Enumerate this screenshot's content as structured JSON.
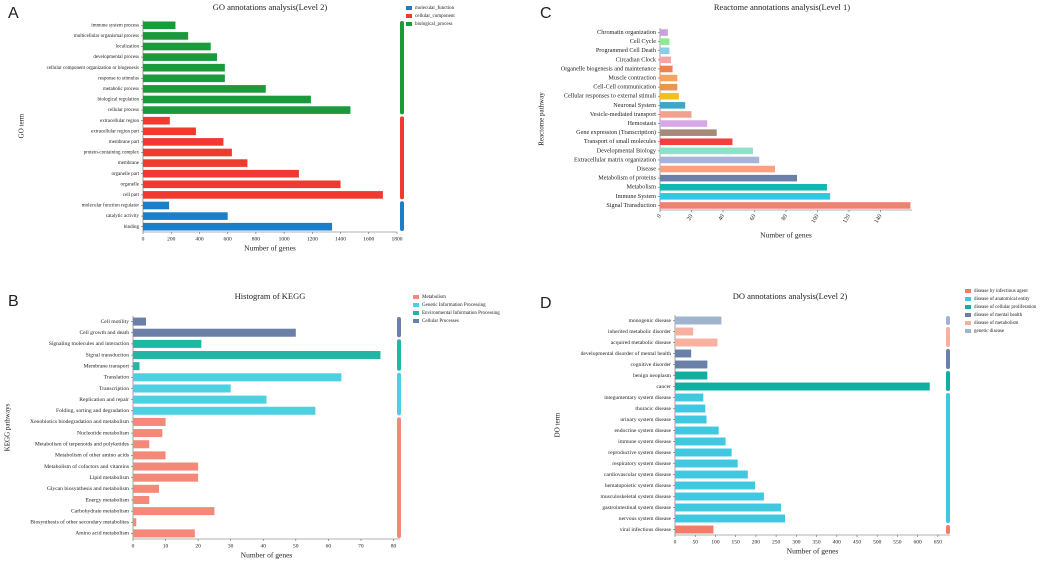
{
  "chart_data": [
    {
      "type": "bar",
      "label": "A",
      "title": "GO annotations analysis(Level 2)",
      "xlabel": "Number of genes",
      "ylabel": "GO term",
      "categories": [
        "immune system process",
        "multicellular organismal process",
        "localization",
        "developmental process",
        "cellular component organization or biogenesis",
        "response to stimulus",
        "metabolic process",
        "biological regulation",
        "cellular process",
        "extracellular region",
        "extracellular region part",
        "membrane part",
        "protein-containing complex",
        "membrane",
        "organelle part",
        "organelle",
        "cell part",
        "molecular function regulator",
        "catalytic activity",
        "binding"
      ],
      "values": [
        230,
        320,
        480,
        525,
        580,
        580,
        870,
        1190,
        1470,
        190,
        375,
        570,
        630,
        740,
        1105,
        1400,
        1700,
        185,
        600,
        1340
      ],
      "colors": [
        "#1a9a3a",
        "#1a9a3a",
        "#1a9a3a",
        "#1a9a3a",
        "#1a9a3a",
        "#1a9a3a",
        "#1a9a3a",
        "#1a9a3a",
        "#1a9a3a",
        "#f03a30",
        "#f03a30",
        "#f03a30",
        "#f03a30",
        "#f03a30",
        "#f03a30",
        "#f03a30",
        "#f03a30",
        "#1a7fc8",
        "#1a7fc8",
        "#1a7fc8"
      ],
      "legend": [
        {
          "name": "molecular_function",
          "color": "#1a7fc8"
        },
        {
          "name": "cellular_component",
          "color": "#f03a30"
        },
        {
          "name": "biological_process",
          "color": "#1a9a3a"
        }
      ],
      "xlim": [
        0,
        1800
      ],
      "xticks": [
        0,
        200,
        400,
        600,
        800,
        1000,
        1200,
        1400,
        1600,
        1800
      ]
    },
    {
      "type": "bar",
      "label": "B",
      "title": "Histogram of KEGG",
      "xlabel": "Number of genes",
      "ylabel": "KEGG pathways",
      "categories": [
        "Cell motility",
        "Cell growth and death",
        "Signaling molecules and interaction",
        "Signal transduction",
        "Membrane transport",
        "Translation",
        "Transcription",
        "Replication and repair",
        "Folding, sorting and degradation",
        "Xenobiotics biodegradation and metabolism",
        "Nucleotide metabolism",
        "Metabolism of terpenoids and polyketides",
        "Metabolism of other amino acids",
        "Metabolism of cofactors and vitamins",
        "Lipid metabolism",
        "Glycan biosynthesis and metabolism",
        "Energy metabolism",
        "Carbohydrate metabolism",
        "Biosynthesis of other secondary metabolites",
        "Amino acid metabolism"
      ],
      "values": [
        4,
        50,
        21,
        76,
        2,
        64,
        30,
        41,
        56,
        10,
        9,
        5,
        10,
        20,
        20,
        8,
        5,
        25,
        1,
        19
      ],
      "colors": [
        "#6b7fa8",
        "#6b7fa8",
        "#20b8a4",
        "#20b8a4",
        "#20b8a4",
        "#4dd0e1",
        "#4dd0e1",
        "#4dd0e1",
        "#4dd0e1",
        "#f4897a",
        "#f4897a",
        "#f4897a",
        "#f4897a",
        "#f4897a",
        "#f4897a",
        "#f4897a",
        "#f4897a",
        "#f4897a",
        "#f4897a",
        "#f4897a"
      ],
      "legend": [
        {
          "name": "Metabolism",
          "color": "#f4897a"
        },
        {
          "name": "Genetic Information Processing",
          "color": "#4dd0e1"
        },
        {
          "name": "Environmental Information Processing",
          "color": "#20b8a4"
        },
        {
          "name": "Cellular Processes",
          "color": "#6b7fa8"
        }
      ],
      "xlim": [
        0,
        82
      ],
      "xticks": [
        0,
        10,
        20,
        30,
        40,
        50,
        60,
        70,
        80
      ]
    },
    {
      "type": "bar",
      "label": "C",
      "title": "Reactome annotations analysis(Level 1)",
      "xlabel": "Number of genes",
      "ylabel": "Reactome pathway",
      "categories": [
        "Chromatin organization",
        "Cell Cycle",
        "Programmed Cell Death",
        "Circadian Clock",
        "Organelle biogenesis and maintenance",
        "Muscle contraction",
        "Cell-Cell communication",
        "Cellular responses to external stimuli",
        "Neuronal System",
        "Vesicle-mediated transport",
        "Hemostasis",
        "Gene expression (Transcription)",
        "Transport of small molecules",
        "Developmental Biology",
        "Extracellular matrix organization",
        "Disease",
        "Metabolism of proteins",
        "Metabolism",
        "Immune System",
        "Signal Transduction"
      ],
      "values": [
        5,
        6,
        6,
        7,
        8,
        11,
        11,
        12,
        16,
        20,
        30,
        36,
        46,
        59,
        63,
        73,
        87,
        106,
        108,
        159
      ],
      "colors": [
        "#c9a0dc",
        "#90e890",
        "#87ceeb",
        "#f4a6a6",
        "#f08050",
        "#f4a460",
        "#e8964f",
        "#f0c020",
        "#3aa8c8",
        "#f4a090",
        "#d6a8e8",
        "#a88878",
        "#f04040",
        "#90e0c8",
        "#a8b4d8",
        "#f8a080",
        "#6a80a8",
        "#10b8b0",
        "#30c8e0",
        "#f08070"
      ],
      "xlim": [
        0,
        160
      ],
      "xticks": [
        0,
        20,
        40,
        60,
        80,
        100,
        120,
        140
      ]
    },
    {
      "type": "bar",
      "label": "D",
      "title": "DO annotations analysis(Level 2)",
      "xlabel": "Number of genes",
      "ylabel": "DO term",
      "categories": [
        "monogenic disease",
        "inherited metabolic disorder",
        "acquired metabolic disease",
        "developmental disorder of mental health",
        "cognitive disorder",
        "benign neoplasm",
        "cancer",
        "integumentary system disease",
        "thoracic disease",
        "urinary system disease",
        "endocrine system disease",
        "immune system disease",
        "reproductive system disease",
        "respiratory system disease",
        "cardiovascular system disease",
        "hematopoietic system disease",
        "musculoskeletal system disease",
        "gastrointestinal system disease",
        "nervous system disease",
        "viral infectious disease"
      ],
      "values": [
        115,
        45,
        105,
        40,
        80,
        80,
        630,
        70,
        75,
        78,
        108,
        125,
        140,
        155,
        180,
        198,
        220,
        262,
        272,
        95
      ],
      "colors": [
        "#a0b4d0",
        "#f8b0a0",
        "#f8b0a0",
        "#6a80a8",
        "#6a80a8",
        "#10b0a0",
        "#10b0a0",
        "#40c8e0",
        "#40c8e0",
        "#40c8e0",
        "#40c8e0",
        "#40c8e0",
        "#40c8e0",
        "#40c8e0",
        "#40c8e0",
        "#40c8e0",
        "#40c8e0",
        "#40c8e0",
        "#40c8e0",
        "#f47a6a"
      ],
      "legend": [
        {
          "name": "disease by infectious agent",
          "color": "#f47a6a"
        },
        {
          "name": "disease of anatomical entity",
          "color": "#40c8e0"
        },
        {
          "name": "disease of cellular proliferation",
          "color": "#10b0a0"
        },
        {
          "name": "disease of mental health",
          "color": "#6a80a8"
        },
        {
          "name": "disease of metabolism",
          "color": "#f8b0a0"
        },
        {
          "name": "genetic disease",
          "color": "#a0b4d0"
        }
      ],
      "xlim": [
        0,
        680
      ],
      "xticks": [
        0,
        50,
        100,
        150,
        200,
        250,
        300,
        350,
        400,
        450,
        500,
        550,
        600,
        650
      ]
    }
  ]
}
